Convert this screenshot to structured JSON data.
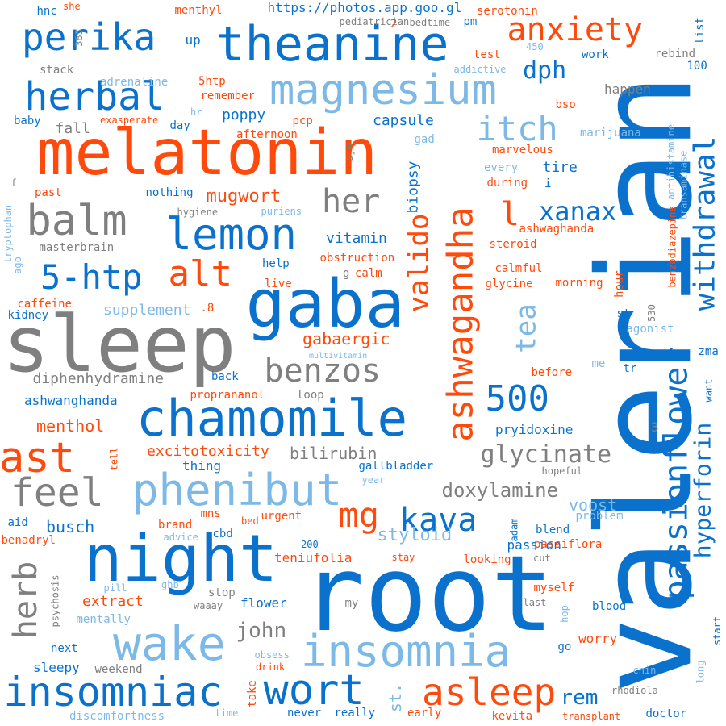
{
  "palette": {
    "blue": "#0a72cc",
    "orange": "#ff4a0b",
    "gray": "#7f7f7f",
    "light": "#7db9e6"
  },
  "words": [
    {
      "text": "valerian",
      "color": "blue",
      "vertical": true
    },
    {
      "text": "root",
      "color": "blue",
      "vertical": false
    },
    {
      "text": "melatonin",
      "color": "orange",
      "vertical": false
    },
    {
      "text": "sleep",
      "color": "gray",
      "vertical": false
    },
    {
      "text": "theanine",
      "color": "blue",
      "vertical": false
    },
    {
      "text": "night",
      "color": "blue",
      "vertical": false
    },
    {
      "text": "gaba",
      "color": "blue",
      "vertical": false
    },
    {
      "text": "chamomile",
      "color": "blue",
      "vertical": false
    },
    {
      "text": "magnesium",
      "color": "light",
      "vertical": false
    },
    {
      "text": "ashwagandha",
      "color": "orange",
      "vertical": true
    },
    {
      "text": "phenibut",
      "color": "light",
      "vertical": false
    },
    {
      "text": "insomnia",
      "color": "light",
      "vertical": false
    },
    {
      "text": "wake",
      "color": "light",
      "vertical": false
    },
    {
      "text": "insomniac",
      "color": "blue",
      "vertical": false
    },
    {
      "text": "passionflower",
      "color": "blue",
      "vertical": true
    },
    {
      "text": "lemon",
      "color": "blue",
      "vertical": false
    },
    {
      "text": "withdrawal",
      "color": "blue",
      "vertical": true
    },
    {
      "text": "balm",
      "color": "gray",
      "vertical": false
    },
    {
      "text": "wort",
      "color": "blue",
      "vertical": false
    },
    {
      "text": "asleep",
      "color": "orange",
      "vertical": false
    },
    {
      "text": "herbal",
      "color": "blue",
      "vertical": false
    },
    {
      "text": "perika",
      "color": "blue",
      "vertical": false
    },
    {
      "text": "anxiety",
      "color": "orange",
      "vertical": false
    },
    {
      "text": "itch",
      "color": "light",
      "vertical": false
    },
    {
      "text": "5-htp",
      "color": "blue",
      "vertical": false
    },
    {
      "text": "alt",
      "color": "orange",
      "vertical": false
    },
    {
      "text": "ast",
      "color": "orange",
      "vertical": false
    },
    {
      "text": "feel",
      "color": "gray",
      "vertical": false
    },
    {
      "text": "mg",
      "color": "orange",
      "vertical": false
    },
    {
      "text": "kava",
      "color": "blue",
      "vertical": false
    },
    {
      "text": "500",
      "color": "blue",
      "vertical": false
    },
    {
      "text": "benzos",
      "color": "gray",
      "vertical": false
    },
    {
      "text": "valido",
      "color": "orange",
      "vertical": true
    },
    {
      "text": "hyperforin",
      "color": "blue",
      "vertical": true
    },
    {
      "text": "herb",
      "color": "gray",
      "vertical": true
    },
    {
      "text": "tea",
      "color": "light",
      "vertical": true
    },
    {
      "text": "her",
      "color": "gray",
      "vertical": false
    },
    {
      "text": "l",
      "color": "orange",
      "vertical": false
    },
    {
      "text": "glycinate",
      "color": "gray",
      "vertical": false
    },
    {
      "text": "xanax",
      "color": "blue",
      "vertical": false
    },
    {
      "text": "john",
      "color": "gray",
      "vertical": false
    },
    {
      "text": "rem",
      "color": "blue",
      "vertical": false
    },
    {
      "text": "doxylamine",
      "color": "gray",
      "vertical": false
    },
    {
      "text": "styloid",
      "color": "light",
      "vertical": false
    },
    {
      "text": "dph",
      "color": "blue",
      "vertical": false
    },
    {
      "text": "mugwort",
      "color": "orange",
      "vertical": false
    },
    {
      "text": "st.",
      "color": "light",
      "vertical": true
    },
    {
      "text": "busch",
      "color": "blue",
      "vertical": false
    },
    {
      "text": "gabaergic",
      "color": "orange",
      "vertical": false
    },
    {
      "text": "menthol",
      "color": "orange",
      "vertical": false
    },
    {
      "text": "voost",
      "color": "light",
      "vertical": false
    },
    {
      "text": "bilirubin",
      "color": "gray",
      "vertical": false
    },
    {
      "text": "excitotoxicity",
      "color": "orange",
      "vertical": false
    },
    {
      "text": "diphenhydramine",
      "color": "gray",
      "vertical": false
    },
    {
      "text": "capsule",
      "color": "blue",
      "vertical": false
    },
    {
      "text": "supplement",
      "color": "light",
      "vertical": false
    },
    {
      "text": "poppy",
      "color": "blue",
      "vertical": false
    },
    {
      "text": "vitamin",
      "color": "blue",
      "vertical": false
    },
    {
      "text": "pryidoxine",
      "color": "blue",
      "vertical": false
    },
    {
      "text": "biopsy",
      "color": "blue",
      "vertical": true
    },
    {
      "text": "tire",
      "color": "blue",
      "vertical": false
    },
    {
      "text": "extract",
      "color": "orange",
      "vertical": false
    },
    {
      "text": "passion",
      "color": "blue",
      "vertical": false
    },
    {
      "text": "teniufolia",
      "color": "orange",
      "vertical": false
    },
    {
      "text": "flower",
      "color": "blue",
      "vertical": false
    },
    {
      "text": "sleepy",
      "color": "blue",
      "vertical": false
    },
    {
      "text": "discomfortness",
      "color": "light",
      "vertical": false
    },
    {
      "text": "ashwanghanda",
      "color": "blue",
      "vertical": false
    },
    {
      "text": "proprananol",
      "color": "orange",
      "vertical": false
    },
    {
      "text": "https://photos.app.goo.gl",
      "color": "blue",
      "vertical": false
    },
    {
      "text": "up",
      "color": "blue",
      "vertical": false
    },
    {
      "text": "fall",
      "color": "gray",
      "vertical": false
    },
    {
      "text": "caffeine",
      "color": "orange",
      "vertical": false
    },
    {
      "text": "kidney",
      "color": "blue",
      "vertical": false
    },
    {
      "text": "live",
      "color": "orange",
      "vertical": false
    },
    {
      "text": "help",
      "color": "blue",
      "vertical": false
    },
    {
      "text": "calm",
      "color": "orange",
      "vertical": false
    },
    {
      "text": "back",
      "color": "blue",
      "vertical": false
    },
    {
      "text": "loop",
      "color": "gray",
      "vertical": false
    },
    {
      "text": "thing",
      "color": "blue",
      "vertical": false
    },
    {
      "text": "brand",
      "color": "orange",
      "vertical": false
    },
    {
      "text": "mns",
      "color": "orange",
      "vertical": false
    },
    {
      "text": "bed",
      "color": "orange",
      "vertical": false
    },
    {
      "text": "urgent",
      "color": "orange",
      "vertical": false
    },
    {
      "text": "cbd",
      "color": "blue",
      "vertical": false
    },
    {
      "text": "aid",
      "color": "blue",
      "vertical": false
    },
    {
      "text": "benadryl",
      "color": "orange",
      "vertical": false
    },
    {
      "text": "200",
      "color": "blue",
      "vertical": false
    },
    {
      "text": "stop",
      "color": "gray",
      "vertical": false
    },
    {
      "text": "next",
      "color": "blue",
      "vertical": false
    },
    {
      "text": "mentally",
      "color": "light",
      "vertical": false
    },
    {
      "text": "weekend",
      "color": "gray",
      "vertical": false
    },
    {
      "text": "drink",
      "color": "orange",
      "vertical": false
    },
    {
      "text": "obsess",
      "color": "light",
      "vertical": false
    },
    {
      "text": "never",
      "color": "blue",
      "vertical": false
    },
    {
      "text": "really",
      "color": "blue",
      "vertical": false
    },
    {
      "text": "early",
      "color": "orange",
      "vertical": false
    },
    {
      "text": "kevita",
      "color": "orange",
      "vertical": false
    },
    {
      "text": "doctor",
      "color": "blue",
      "vertical": false
    },
    {
      "text": "transplant",
      "color": "orange",
      "vertical": false
    },
    {
      "text": "worry",
      "color": "orange",
      "vertical": false
    },
    {
      "text": "myself",
      "color": "orange",
      "vertical": false
    },
    {
      "text": "blood",
      "color": "blue",
      "vertical": false
    },
    {
      "text": "looking",
      "color": "orange",
      "vertical": false
    },
    {
      "text": "blend",
      "color": "blue",
      "vertical": false
    },
    {
      "text": "passiflora",
      "color": "orange",
      "vertical": false
    },
    {
      "text": "problem",
      "color": "light",
      "vertical": false
    },
    {
      "text": "before",
      "color": "orange",
      "vertical": false
    },
    {
      "text": "agonist",
      "color": "light",
      "vertical": false
    },
    {
      "text": "hour",
      "color": "orange",
      "vertical": true
    },
    {
      "text": "glycine",
      "color": "orange",
      "vertical": false
    },
    {
      "text": "morning",
      "color": "orange",
      "vertical": false
    },
    {
      "text": "calmful",
      "color": "orange",
      "vertical": false
    },
    {
      "text": "steroid",
      "color": "orange",
      "vertical": false
    },
    {
      "text": "ashwaghanda",
      "color": "orange",
      "vertical": false
    },
    {
      "text": "during",
      "color": "orange",
      "vertical": false
    },
    {
      "text": "every",
      "color": "light",
      "vertical": false
    },
    {
      "text": "marvelous",
      "color": "orange",
      "vertical": false
    },
    {
      "text": "marijuana",
      "color": "light",
      "vertical": false
    },
    {
      "text": "bso",
      "color": "orange",
      "vertical": false
    },
    {
      "text": "happen",
      "color": "gray",
      "vertical": false
    },
    {
      "text": "work",
      "color": "blue",
      "vertical": false
    },
    {
      "text": "rebind",
      "color": "gray",
      "vertical": false
    },
    {
      "text": "list",
      "color": "blue",
      "vertical": true
    },
    {
      "text": "test",
      "color": "orange",
      "vertical": false
    },
    {
      "text": "addictive",
      "color": "light",
      "vertical": false
    },
    {
      "text": "serotonin",
      "color": "orange",
      "vertical": false
    },
    {
      "text": "pm",
      "color": "blue",
      "vertical": false
    },
    {
      "text": "bedtime",
      "color": "gray",
      "vertical": false
    },
    {
      "text": "pediatrician",
      "color": "gray",
      "vertical": false
    },
    {
      "text": "menthyl",
      "color": "orange",
      "vertical": false
    },
    {
      "text": "hnc",
      "color": "blue",
      "vertical": false
    },
    {
      "text": "she",
      "color": "orange",
      "vertical": false
    },
    {
      "text": "385",
      "color": "gray",
      "vertical": true
    },
    {
      "text": "stack",
      "color": "gray",
      "vertical": false
    },
    {
      "text": "adrenaline",
      "color": "light",
      "vertical": false
    },
    {
      "text": "5htp",
      "color": "orange",
      "vertical": false
    },
    {
      "text": "remember",
      "color": "orange",
      "vertical": false
    },
    {
      "text": "baby",
      "color": "blue",
      "vertical": false
    },
    {
      "text": "exasperate",
      "color": "orange",
      "vertical": false
    },
    {
      "text": "day",
      "color": "blue",
      "vertical": false
    },
    {
      "text": "hr",
      "color": "light",
      "vertical": false
    },
    {
      "text": "pcp",
      "color": "orange",
      "vertical": false
    },
    {
      "text": "afternoon",
      "color": "orange",
      "vertical": false
    },
    {
      "text": "gad",
      "color": "light",
      "vertical": false
    },
    {
      "text": "sjw",
      "color": "gray",
      "vertical": true
    },
    {
      "text": "past",
      "color": "orange",
      "vertical": false
    },
    {
      "text": "nothing",
      "color": "blue",
      "vertical": false
    },
    {
      "text": "hygiene",
      "color": "gray",
      "vertical": false
    },
    {
      "text": "puriens",
      "color": "light",
      "vertical": false
    },
    {
      "text": "masterbrain",
      "color": "gray",
      "vertical": false
    },
    {
      "text": "tryptophan",
      "color": "light",
      "vertical": true
    },
    {
      "text": "obstruction",
      "color": "orange",
      "vertical": false
    },
    {
      "text": "multivitamin",
      "color": "light",
      "vertical": false
    },
    {
      "text": "zma",
      "color": "blue",
      "vertical": false
    },
    {
      "text": "want",
      "color": "blue",
      "vertical": true
    },
    {
      "text": "tr",
      "color": "blue",
      "vertical": false
    },
    {
      "text": "me",
      "color": "light",
      "vertical": false
    },
    {
      "text": "st",
      "color": "blue",
      "vertical": false
    },
    {
      "text": "530",
      "color": "gray",
      "vertical": true
    },
    {
      "text": "benzodiazepine",
      "color": "orange",
      "vertical": true
    },
    {
      "text": "transaminase",
      "color": "light",
      "vertical": true
    },
    {
      "text": "antihistamine",
      "color": "light",
      "vertical": true
    },
    {
      "text": "100",
      "color": "blue",
      "vertical": false
    },
    {
      "text": "450",
      "color": "light",
      "vertical": false
    },
    {
      "text": "hopeful",
      "color": "gray",
      "vertical": false
    },
    {
      "text": "3",
      "color": "gray",
      "vertical": false
    },
    {
      "text": "gallbladder",
      "color": "blue",
      "vertical": false
    },
    {
      "text": "year",
      "color": "light",
      "vertical": false
    },
    {
      "text": "adam",
      "color": "blue",
      "vertical": true
    },
    {
      "text": "stay",
      "color": "orange",
      "vertical": false
    },
    {
      "text": "cut",
      "color": "gray",
      "vertical": false
    },
    {
      "text": "last",
      "color": "gray",
      "vertical": false
    },
    {
      "text": "hop",
      "color": "light",
      "vertical": true
    },
    {
      "text": "go",
      "color": "blue",
      "vertical": false
    },
    {
      "text": "start",
      "color": "blue",
      "vertical": true
    },
    {
      "text": "long",
      "color": "light",
      "vertical": true
    },
    {
      "text": "chin",
      "color": "light",
      "vertical": false
    },
    {
      "text": "rhodiola",
      "color": "gray",
      "vertical": false
    },
    {
      "text": "ghb",
      "color": "light",
      "vertical": false
    },
    {
      "text": "pill",
      "color": "light",
      "vertical": false
    },
    {
      "text": "waaay",
      "color": "gray",
      "vertical": false
    },
    {
      "text": "psychosis",
      "color": "gray",
      "vertical": true
    },
    {
      "text": "advice",
      "color": "light",
      "vertical": false
    },
    {
      "text": "take",
      "color": "orange",
      "vertical": true
    },
    {
      "text": "time",
      "color": "light",
      "vertical": false
    },
    {
      "text": "tell",
      "color": "orange",
      "vertical": true
    },
    {
      "text": "my",
      "color": "gray",
      "vertical": false
    },
    {
      "text": "ago",
      "color": "light",
      "vertical": true
    },
    {
      "text": "f",
      "color": "gray",
      "vertical": false
    },
    {
      "text": "i",
      "color": "blue",
      "vertical": false
    },
    {
      "text": "g",
      "color": "gray",
      "vertical": false
    },
    {
      "text": ".8",
      "color": "orange",
      "vertical": false
    },
    {
      "text": "2",
      "color": "orange",
      "vertical": false
    }
  ]
}
